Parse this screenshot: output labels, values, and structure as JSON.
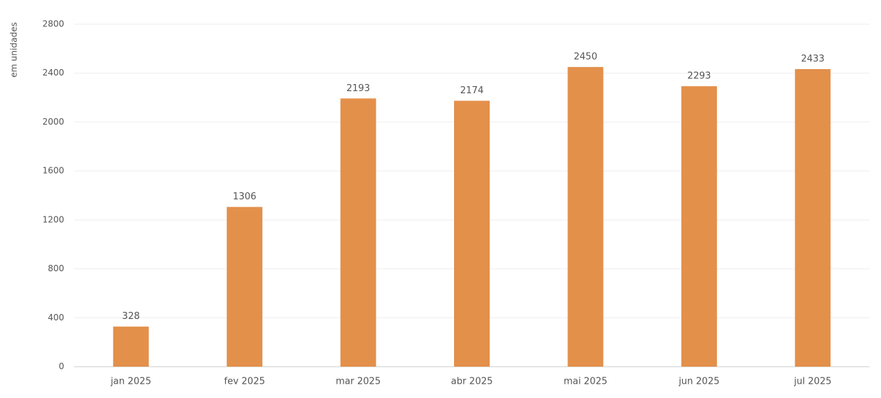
{
  "chart_data": {
    "type": "bar",
    "y_label": "em unidades",
    "categories": [
      "jan 2025",
      "fev 2025",
      "mar 2025",
      "abr 2025",
      "mai 2025",
      "jun 2025",
      "jul 2025"
    ],
    "values": [
      328,
      1306,
      2193,
      2174,
      2450,
      2293,
      2433
    ],
    "color": "#e3904b",
    "ylim": [
      0,
      2800
    ],
    "yticks": [
      0,
      400,
      800,
      1200,
      1600,
      2000,
      2400,
      2800
    ],
    "grid": true
  }
}
